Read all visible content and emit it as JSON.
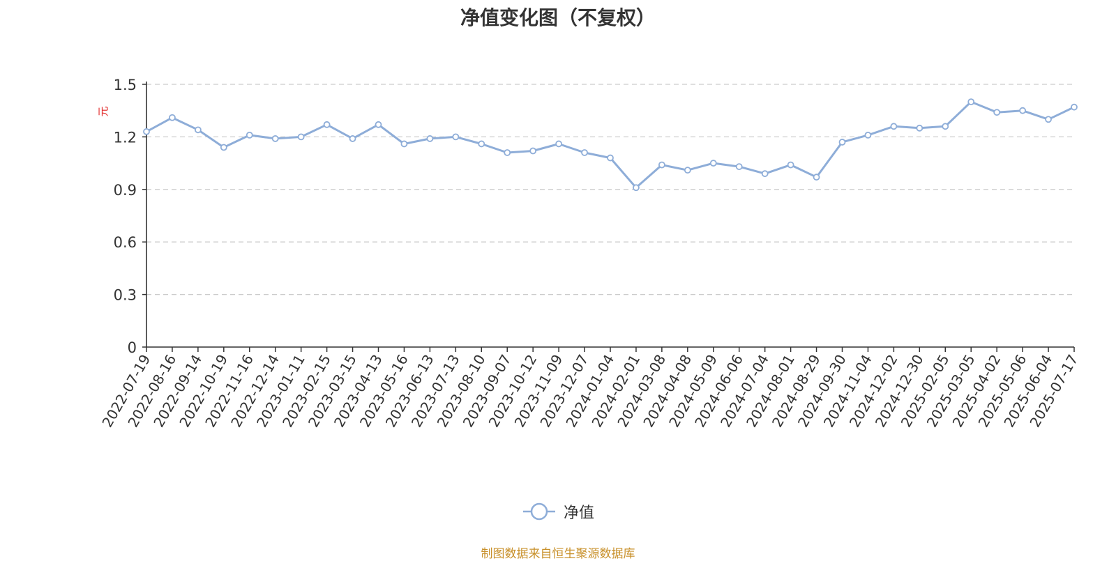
{
  "page": {
    "footnote": "制图数据来自恒生聚源数据库",
    "footnote_color": "#c8902a"
  },
  "chart_data": {
    "type": "line",
    "title": "净值变化图（不复权）",
    "ylabel": "元",
    "ylabel_color": "#e02020",
    "xlabel": "",
    "ylim": [
      0,
      1.5
    ],
    "yticks": [
      "0",
      "0.3",
      "0.6",
      "0.9",
      "1.2",
      "1.5"
    ],
    "grid": true,
    "legend_position": "bottom-center",
    "series_color": "#8eadd8",
    "x": [
      "2022-07-19",
      "2022-08-16",
      "2022-09-14",
      "2022-10-19",
      "2022-11-16",
      "2022-12-14",
      "2023-01-11",
      "2023-02-15",
      "2023-03-15",
      "2023-04-13",
      "2023-05-16",
      "2023-06-13",
      "2023-07-13",
      "2023-08-10",
      "2023-09-07",
      "2023-10-12",
      "2023-11-09",
      "2023-12-07",
      "2024-01-04",
      "2024-02-01",
      "2024-03-08",
      "2024-04-08",
      "2024-05-09",
      "2024-06-06",
      "2024-07-04",
      "2024-08-01",
      "2024-08-29",
      "2024-09-30",
      "2024-11-04",
      "2024-12-02",
      "2024-12-30",
      "2025-02-05",
      "2025-03-05",
      "2025-04-02",
      "2025-05-06",
      "2025-06-04",
      "2025-07-17"
    ],
    "series": [
      {
        "name": "净值",
        "values": [
          1.23,
          1.31,
          1.24,
          1.14,
          1.21,
          1.19,
          1.2,
          1.27,
          1.19,
          1.27,
          1.16,
          1.19,
          1.2,
          1.16,
          1.11,
          1.12,
          1.16,
          1.11,
          1.08,
          0.91,
          1.04,
          1.01,
          1.05,
          1.03,
          0.99,
          1.04,
          0.97,
          1.17,
          1.21,
          1.26,
          1.25,
          1.26,
          1.4,
          1.34,
          1.35,
          1.3,
          1.37
        ]
      }
    ]
  }
}
